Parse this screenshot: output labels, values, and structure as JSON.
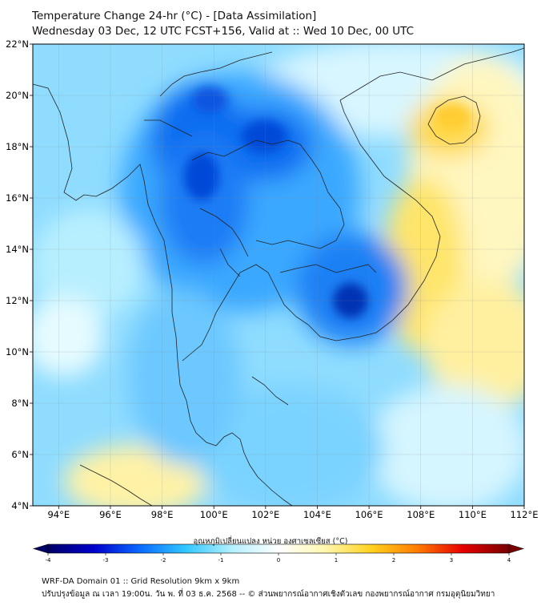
{
  "header": {
    "title": "Temperature Change 24-hr (°C) - [Data Assimilation]",
    "subtitle": "Wednesday 03 Dec, 12 UTC FCST+156, Valid at :: Wed 10 Dec, 00 UTC"
  },
  "map": {
    "region": "Mainland Southeast Asia (Thailand, Myanmar, Laos, Cambodia, Vietnam)",
    "lon_range": [
      93,
      112
    ],
    "lat_range": [
      4,
      22
    ],
    "lat_ticks": [
      "22°N",
      "20°N",
      "18°N",
      "16°N",
      "14°N",
      "12°N",
      "10°N",
      "8°N",
      "6°N",
      "4°N"
    ],
    "lon_ticks": [
      "94°E",
      "96°E",
      "98°E",
      "100°E",
      "102°E",
      "104°E",
      "106°E",
      "108°E",
      "110°E",
      "112°E"
    ],
    "anomalies": [
      {
        "lon": 99.7,
        "lat": 16.7,
        "value": -3.0
      },
      {
        "lon": 101.7,
        "lat": 18.3,
        "value": -3.0
      },
      {
        "lon": 105.8,
        "lat": 11.8,
        "value": -3.2
      },
      {
        "lon": 100.3,
        "lat": 14.3,
        "value": -2.2
      },
      {
        "lon": 101.5,
        "lat": 15.5,
        "value": -2.2
      },
      {
        "lon": 99.2,
        "lat": 19.5,
        "value": -2.6
      },
      {
        "lon": 109.7,
        "lat": 19.3,
        "value": 1.1
      },
      {
        "lon": 108.3,
        "lat": 14.2,
        "value": 0.8
      },
      {
        "lon": 97.7,
        "lat": 4.7,
        "value": 0.7
      },
      {
        "lon": 94.5,
        "lat": 10.8,
        "value": 0.4
      },
      {
        "lon": 109.5,
        "lat": 10.5,
        "value": 0.5
      },
      {
        "lon": 104.5,
        "lat": 5.0,
        "value": 0.3
      }
    ]
  },
  "colorbar": {
    "label": "อุณหภูมิเปลี่ยนแปลง หน่วย องศาเซลเซียส (°C)",
    "min": -4,
    "max": 4,
    "ticks": [
      "-4",
      "-3",
      "-2",
      "-1",
      "0",
      "1",
      "2",
      "3",
      "4"
    ],
    "colors": [
      "#000066",
      "#0000cc",
      "#0a6bff",
      "#32c8ff",
      "#b4f0ff",
      "#ffffff",
      "#fff7b0",
      "#ffd21e",
      "#ff7d00",
      "#e60000",
      "#780000"
    ]
  },
  "footer": {
    "line1": "WRF-DA Domain 01 :: Grid Resolution 9km x 9km",
    "line2": "ปรับปรุงข้อมูล ณ เวลา 19:00น. วัน พ. ที่ 03 ธ.ค. 2568 -- © ส่วนพยากรณ์อากาศเชิงตัวเลข กองพยากรณ์อากาศ กรมอุตุนิยมวิทยา"
  }
}
